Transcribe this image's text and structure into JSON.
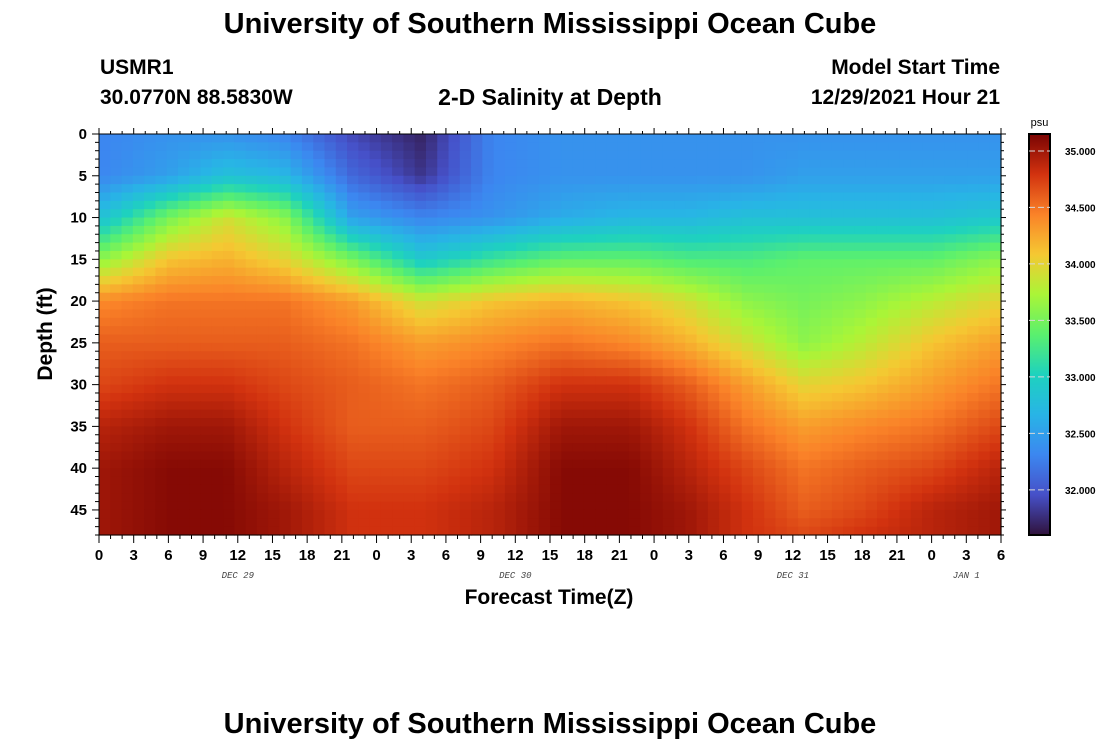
{
  "page": {
    "title": "University of Southern Mississippi Ocean Cube",
    "station_id": "USMR1",
    "station_coords": "30.0770N  88.5830W",
    "product_title": "2-D Salinity at Depth",
    "model_start_label": "Model Start Time",
    "model_start_value": "12/29/2021 Hour 21",
    "footer_title": "University of Southern Mississippi Ocean Cube"
  },
  "chart_data": {
    "type": "heatmap",
    "title": "2-D Salinity at Depth",
    "xlabel": "Forecast Time(Z)",
    "ylabel": "Depth (ft)",
    "x_tick_labels": [
      "0",
      "3",
      "6",
      "9",
      "12",
      "15",
      "18",
      "21",
      "0",
      "3",
      "6",
      "9",
      "12",
      "15",
      "18",
      "21",
      "0",
      "3",
      "6",
      "9",
      "12",
      "15",
      "18",
      "21",
      "0",
      "3",
      "6"
    ],
    "x_range_hours": [
      0,
      78
    ],
    "date_labels": [
      {
        "label": "DEC 29",
        "hour": 12
      },
      {
        "label": "DEC 30",
        "hour": 36
      },
      {
        "label": "DEC 31",
        "hour": 60
      },
      {
        "label": "JAN 1",
        "hour": 75
      }
    ],
    "y_tick_labels": [
      "0",
      "5",
      "10",
      "15",
      "20",
      "25",
      "30",
      "35",
      "40",
      "45"
    ],
    "y_ticks": [
      0,
      5,
      10,
      15,
      20,
      25,
      30,
      35,
      40,
      45
    ],
    "ylim": [
      0,
      48
    ],
    "colorbar": {
      "unit": "psu",
      "range": [
        31.6,
        35.15
      ],
      "tick_values": [
        32.0,
        32.5,
        33.0,
        33.5,
        34.0,
        34.5,
        35.0
      ],
      "tick_labels": [
        "32.000",
        "32.500",
        "33.000",
        "33.500",
        "34.000",
        "34.500",
        "35.000"
      ]
    },
    "salinity_profile": {
      "hours": [
        0,
        6,
        11,
        16,
        22,
        28,
        34,
        40,
        46,
        51,
        56,
        61,
        66,
        72,
        78
      ],
      "depths": [
        0,
        5,
        10,
        15,
        20,
        25,
        30,
        35,
        40,
        45,
        48
      ],
      "values": [
        [
          32.3,
          32.4,
          32.4,
          32.3,
          31.9,
          31.7,
          32.3,
          32.4,
          32.4,
          32.4,
          32.4,
          32.4,
          32.4,
          32.4,
          32.4
        ],
        [
          32.3,
          32.5,
          32.8,
          32.7,
          32.1,
          31.8,
          32.3,
          32.4,
          32.4,
          32.4,
          32.4,
          32.5,
          32.5,
          32.5,
          32.5
        ],
        [
          32.8,
          33.5,
          33.9,
          33.6,
          32.5,
          32.3,
          32.4,
          32.6,
          32.7,
          32.7,
          32.8,
          32.8,
          32.8,
          32.8,
          32.9
        ],
        [
          33.6,
          34.1,
          34.2,
          34.0,
          33.5,
          32.9,
          33.2,
          33.4,
          33.4,
          33.3,
          33.3,
          33.4,
          33.4,
          33.4,
          33.6
        ],
        [
          34.4,
          34.5,
          34.5,
          34.5,
          34.3,
          33.9,
          34.1,
          34.2,
          34.1,
          33.9,
          33.6,
          33.5,
          33.6,
          33.8,
          34.0
        ],
        [
          34.6,
          34.6,
          34.6,
          34.6,
          34.5,
          34.3,
          34.4,
          34.5,
          34.4,
          34.2,
          33.9,
          33.6,
          33.8,
          34.1,
          34.3
        ],
        [
          34.7,
          34.8,
          34.8,
          34.7,
          34.6,
          34.5,
          34.6,
          34.8,
          34.8,
          34.6,
          34.3,
          34.0,
          34.1,
          34.3,
          34.5
        ],
        [
          34.9,
          35.0,
          35.0,
          34.8,
          34.6,
          34.6,
          34.7,
          35.0,
          35.0,
          34.8,
          34.5,
          34.3,
          34.4,
          34.5,
          34.7
        ],
        [
          35.0,
          35.1,
          35.1,
          34.9,
          34.7,
          34.7,
          34.8,
          35.1,
          35.1,
          34.9,
          34.7,
          34.5,
          34.6,
          34.7,
          34.9
        ],
        [
          35.0,
          35.1,
          35.1,
          35.0,
          34.8,
          34.8,
          34.9,
          35.1,
          35.1,
          35.0,
          34.8,
          34.6,
          34.7,
          34.9,
          35.0
        ],
        [
          35.0,
          35.1,
          35.1,
          35.0,
          34.8,
          34.8,
          34.9,
          35.1,
          35.1,
          35.0,
          34.8,
          34.7,
          34.8,
          34.9,
          35.0
        ]
      ]
    }
  }
}
